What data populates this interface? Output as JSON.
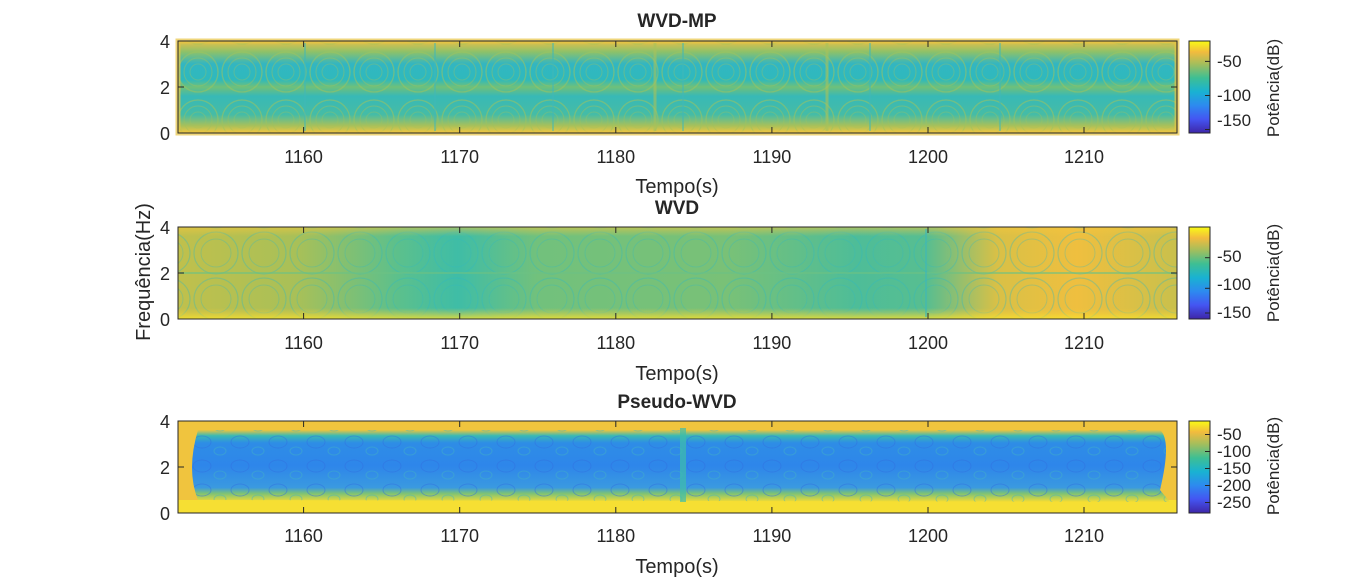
{
  "figure": {
    "shared_ylabel": "Frequência(Hz)"
  },
  "chart_data": [
    {
      "type": "heatmap",
      "title": "WVD-MP",
      "xlabel": "Tempo(s)",
      "ylabel": "",
      "xlim": [
        1152,
        1216
      ],
      "ylim": [
        0,
        4
      ],
      "xticks": [
        1160,
        1170,
        1180,
        1190,
        1200,
        1210
      ],
      "yticks": [
        0,
        2,
        4
      ],
      "colorbar": {
        "label": "Potência(dB)",
        "range": [
          -170,
          -35
        ],
        "ticks": [
          -50,
          -100,
          -150
        ]
      },
      "pattern": "interference-lobes"
    },
    {
      "type": "heatmap",
      "title": "WVD",
      "xlabel": "Tempo(s)",
      "ylabel": "",
      "xlim": [
        1152,
        1216
      ],
      "ylim": [
        0,
        4
      ],
      "xticks": [
        1160,
        1170,
        1180,
        1190,
        1200,
        1210
      ],
      "yticks": [
        0,
        2,
        4
      ],
      "colorbar": {
        "label": "Potência(dB)",
        "range": [
          -170,
          -20
        ],
        "ticks": [
          -50,
          -100,
          -150
        ]
      },
      "pattern": "central-green-band"
    },
    {
      "type": "heatmap",
      "title": "Pseudo-WVD",
      "xlabel": "Tempo(s)",
      "ylabel": "",
      "xlim": [
        1152,
        1216
      ],
      "ylim": [
        0,
        4
      ],
      "xticks": [
        1160,
        1170,
        1180,
        1190,
        1200,
        1210
      ],
      "yticks": [
        0,
        2,
        4
      ],
      "colorbar": {
        "label": "Potência(dB)",
        "range": [
          -270,
          -30
        ],
        "ticks": [
          -50,
          -100,
          -150,
          -200,
          -250
        ]
      },
      "pattern": "blue-core"
    }
  ]
}
